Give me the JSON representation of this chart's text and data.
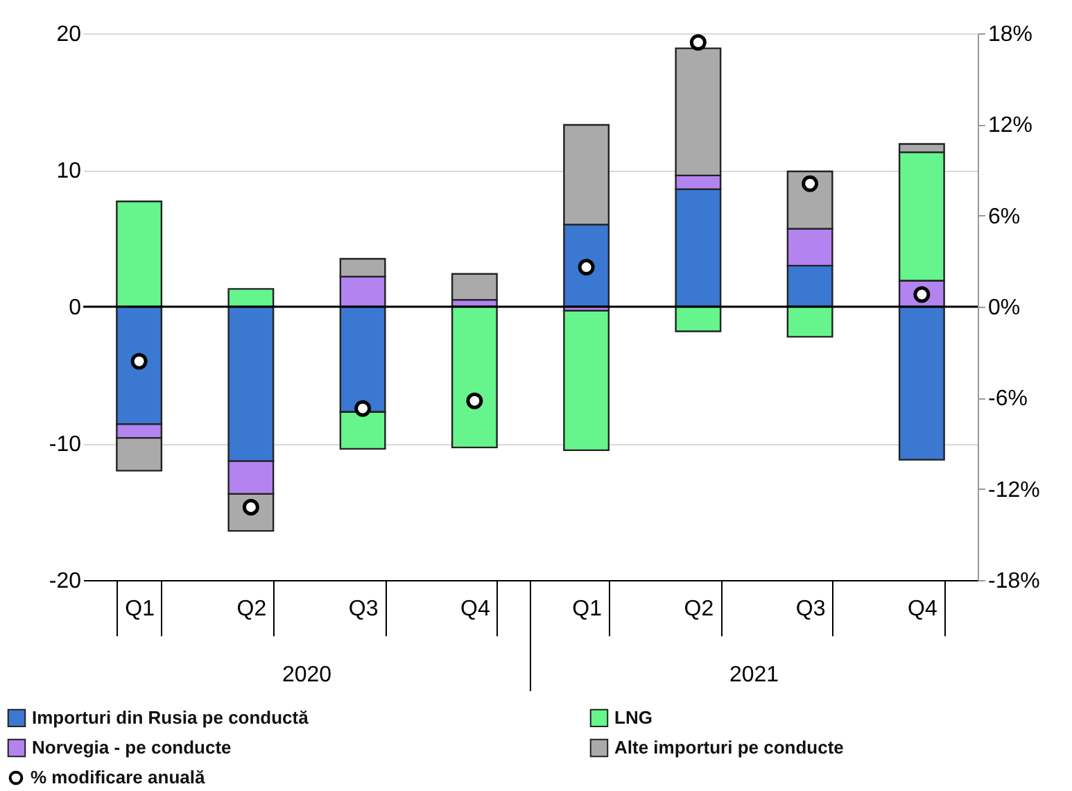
{
  "chart_data": {
    "type": "bar",
    "categories": [
      "Q1",
      "Q2",
      "Q3",
      "Q4",
      "Q1",
      "Q2",
      "Q3",
      "Q4"
    ],
    "annotations": [
      "2020",
      "2021"
    ],
    "stacked": true,
    "series": [
      {
        "name": "Importuri din Rusia pe conductă",
        "color": "#3a78d2",
        "values": [
          -8.6,
          -11.3,
          -7.7,
          null,
          6.0,
          8.6,
          3.0,
          -11.2
        ]
      },
      {
        "name": "Norvegia - pe conducte",
        "color": "#b383f0",
        "values": [
          -1.0,
          -2.4,
          2.2,
          0.5,
          -0.3,
          1.0,
          2.7,
          1.9
        ]
      },
      {
        "name": "LNG",
        "color": "#66f48c",
        "values": [
          7.7,
          1.3,
          -2.7,
          -10.3,
          -10.2,
          -1.8,
          -2.2,
          9.4
        ]
      },
      {
        "name": "Alte importuri pe conducte",
        "color": "#aaaaaa",
        "values": [
          -2.4,
          -2.7,
          1.3,
          1.9,
          7.3,
          9.3,
          4.2,
          0.6
        ]
      },
      {
        "name": "% modificare anuală",
        "type": "scatter",
        "axis": "y2",
        "marker": "circle",
        "color": "#ffffff",
        "values": [
          -3.6,
          -13.2,
          -6.7,
          -6.2,
          2.6,
          17.4,
          8.1,
          0.8
        ]
      }
    ],
    "ylim": [
      -20,
      20
    ],
    "yticks": [
      -20,
      -10,
      0,
      10,
      20
    ],
    "y2lim": [
      -18,
      18
    ],
    "y2ticks": [
      {
        "value": -18,
        "label": "-18%"
      },
      {
        "value": -12,
        "label": "-12%"
      },
      {
        "value": -6,
        "label": "-6%"
      },
      {
        "value": 0,
        "label": "0%"
      },
      {
        "value": 6,
        "label": "6%"
      },
      {
        "value": 12,
        "label": "12%"
      },
      {
        "value": 18,
        "label": "18%"
      }
    ],
    "ref_lines": [
      {
        "axis": "y",
        "value": 0,
        "color": "#000000"
      }
    ],
    "grid": "y",
    "legend": "bottom"
  }
}
